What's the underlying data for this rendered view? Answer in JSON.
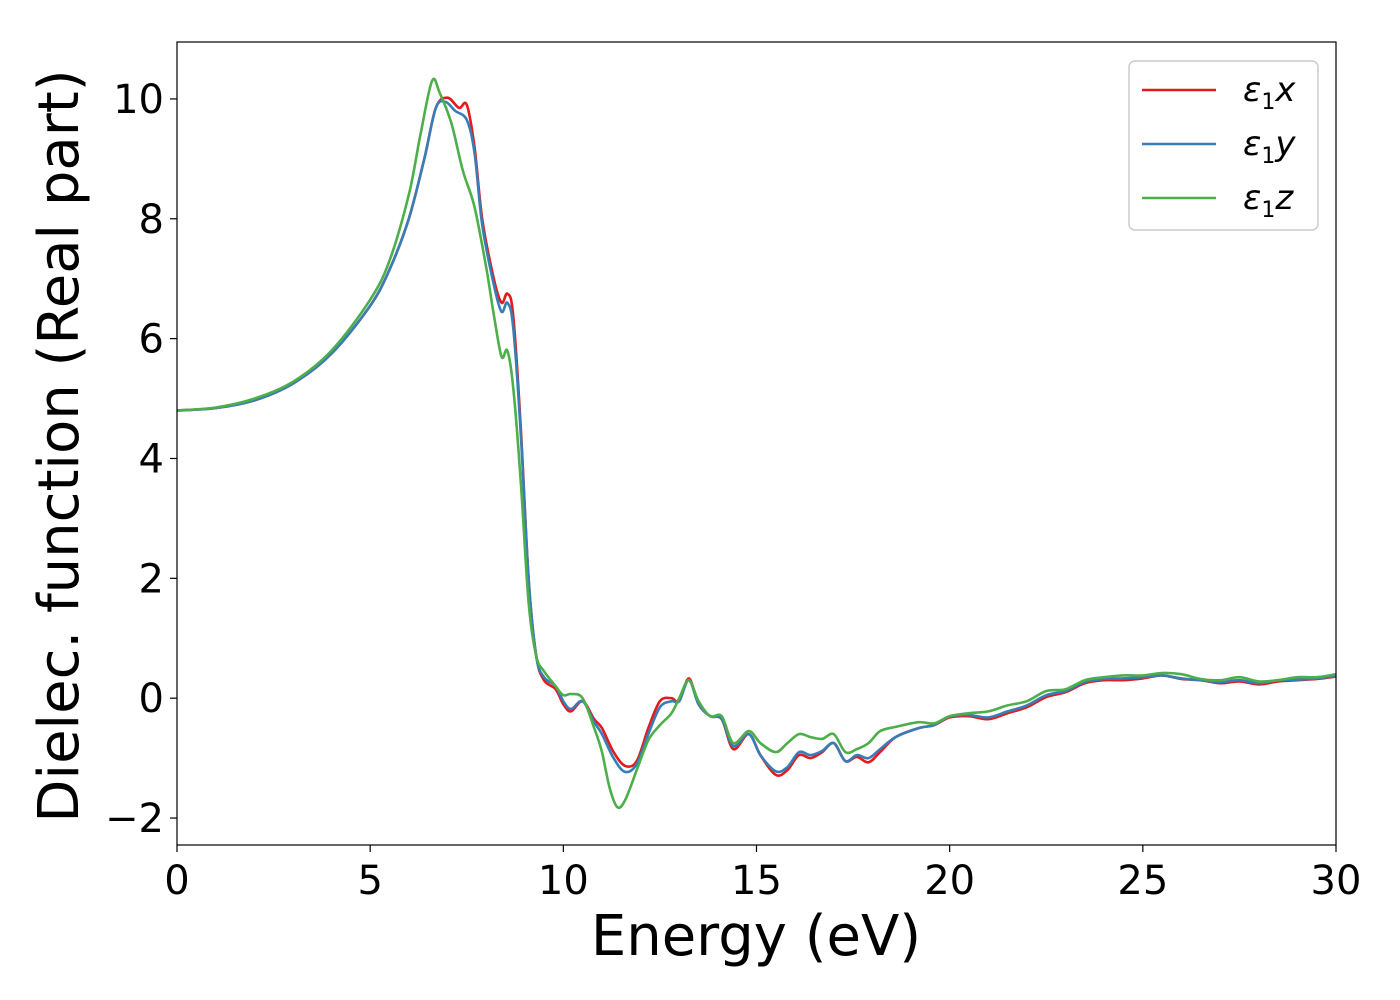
{
  "chart_data": {
    "type": "line",
    "xlabel": "Energy (eV)",
    "ylabel": "Dielec. function (Real part)",
    "xlim": [
      0,
      30
    ],
    "ylim": [
      -2.45,
      10.95
    ],
    "xticks": [
      0,
      5,
      10,
      15,
      20,
      25,
      30
    ],
    "xtick_labels": [
      "0",
      "5",
      "10",
      "15",
      "20",
      "25",
      "30"
    ],
    "yticks": [
      -2,
      0,
      2,
      4,
      6,
      8,
      10
    ],
    "ytick_labels": [
      "−2",
      "0",
      "2",
      "4",
      "6",
      "8",
      "10"
    ],
    "grid": false,
    "legend_position": "top-right",
    "colors": {
      "x": "#e41a1c",
      "y": "#377eb8",
      "z": "#4daf4a"
    },
    "series": [
      {
        "name": "ε₁x",
        "legend": {
          "base": "ε",
          "sub": "1",
          "suffix": "x"
        },
        "color": "#e41a1c",
        "points": [
          [
            0,
            4.8
          ],
          [
            1,
            4.84
          ],
          [
            2,
            4.97
          ],
          [
            3,
            5.25
          ],
          [
            4,
            5.75
          ],
          [
            5,
            6.55
          ],
          [
            5.5,
            7.15
          ],
          [
            6,
            8.0
          ],
          [
            6.4,
            9.0
          ],
          [
            6.7,
            9.85
          ],
          [
            7.0,
            10.02
          ],
          [
            7.3,
            9.85
          ],
          [
            7.5,
            9.9
          ],
          [
            7.7,
            9.2
          ],
          [
            7.9,
            8.0
          ],
          [
            8.2,
            7.0
          ],
          [
            8.4,
            6.6
          ],
          [
            8.55,
            6.75
          ],
          [
            8.7,
            6.4
          ],
          [
            8.9,
            4.5
          ],
          [
            9.1,
            2.0
          ],
          [
            9.3,
            0.7
          ],
          [
            9.5,
            0.3
          ],
          [
            9.8,
            0.15
          ],
          [
            10.0,
            -0.1
          ],
          [
            10.2,
            -0.22
          ],
          [
            10.5,
            -0.05
          ],
          [
            10.8,
            -0.35
          ],
          [
            11.0,
            -0.5
          ],
          [
            11.3,
            -0.9
          ],
          [
            11.6,
            -1.13
          ],
          [
            11.9,
            -1.05
          ],
          [
            12.2,
            -0.5
          ],
          [
            12.5,
            -0.05
          ],
          [
            12.8,
            0.0
          ],
          [
            13.0,
            -0.05
          ],
          [
            13.25,
            0.33
          ],
          [
            13.5,
            -0.1
          ],
          [
            13.8,
            -0.3
          ],
          [
            14.1,
            -0.35
          ],
          [
            14.4,
            -0.85
          ],
          [
            14.8,
            -0.6
          ],
          [
            15.1,
            -0.95
          ],
          [
            15.5,
            -1.28
          ],
          [
            15.8,
            -1.2
          ],
          [
            16.1,
            -0.95
          ],
          [
            16.4,
            -1.0
          ],
          [
            16.7,
            -0.9
          ],
          [
            17.0,
            -0.75
          ],
          [
            17.3,
            -1.05
          ],
          [
            17.6,
            -0.98
          ],
          [
            17.9,
            -1.07
          ],
          [
            18.2,
            -0.9
          ],
          [
            18.6,
            -0.65
          ],
          [
            19.2,
            -0.5
          ],
          [
            19.6,
            -0.45
          ],
          [
            20.0,
            -0.32
          ],
          [
            20.5,
            -0.3
          ],
          [
            21.0,
            -0.35
          ],
          [
            21.5,
            -0.25
          ],
          [
            22.0,
            -0.15
          ],
          [
            22.5,
            0.02
          ],
          [
            23.0,
            0.1
          ],
          [
            23.5,
            0.25
          ],
          [
            24.0,
            0.3
          ],
          [
            24.5,
            0.3
          ],
          [
            25.0,
            0.33
          ],
          [
            25.5,
            0.38
          ],
          [
            26.0,
            0.32
          ],
          [
            26.5,
            0.3
          ],
          [
            27.0,
            0.25
          ],
          [
            27.5,
            0.28
          ],
          [
            28.0,
            0.23
          ],
          [
            28.5,
            0.28
          ],
          [
            29.0,
            0.3
          ],
          [
            29.5,
            0.32
          ],
          [
            30.0,
            0.36
          ]
        ]
      },
      {
        "name": "ε₁y",
        "legend": {
          "base": "ε",
          "sub": "1",
          "suffix": "y"
        },
        "color": "#377eb8",
        "points": [
          [
            0,
            4.8
          ],
          [
            1,
            4.84
          ],
          [
            2,
            4.97
          ],
          [
            3,
            5.25
          ],
          [
            4,
            5.75
          ],
          [
            5,
            6.55
          ],
          [
            5.5,
            7.15
          ],
          [
            6,
            8.0
          ],
          [
            6.4,
            9.0
          ],
          [
            6.7,
            9.85
          ],
          [
            6.95,
            9.95
          ],
          [
            7.2,
            9.8
          ],
          [
            7.5,
            9.65
          ],
          [
            7.7,
            9.1
          ],
          [
            7.9,
            7.9
          ],
          [
            8.2,
            6.9
          ],
          [
            8.4,
            6.45
          ],
          [
            8.55,
            6.6
          ],
          [
            8.7,
            6.2
          ],
          [
            8.9,
            4.4
          ],
          [
            9.1,
            2.0
          ],
          [
            9.3,
            0.7
          ],
          [
            9.5,
            0.35
          ],
          [
            9.8,
            0.2
          ],
          [
            10.0,
            -0.05
          ],
          [
            10.2,
            -0.18
          ],
          [
            10.5,
            -0.05
          ],
          [
            10.8,
            -0.4
          ],
          [
            11.0,
            -0.6
          ],
          [
            11.3,
            -1.0
          ],
          [
            11.6,
            -1.23
          ],
          [
            11.9,
            -1.1
          ],
          [
            12.2,
            -0.6
          ],
          [
            12.5,
            -0.15
          ],
          [
            12.8,
            -0.05
          ],
          [
            13.0,
            -0.05
          ],
          [
            13.25,
            0.3
          ],
          [
            13.5,
            -0.1
          ],
          [
            13.8,
            -0.3
          ],
          [
            14.1,
            -0.35
          ],
          [
            14.4,
            -0.8
          ],
          [
            14.8,
            -0.6
          ],
          [
            15.1,
            -0.95
          ],
          [
            15.5,
            -1.22
          ],
          [
            15.8,
            -1.15
          ],
          [
            16.1,
            -0.9
          ],
          [
            16.4,
            -0.95
          ],
          [
            16.7,
            -0.88
          ],
          [
            17.0,
            -0.75
          ],
          [
            17.3,
            -1.05
          ],
          [
            17.6,
            -0.95
          ],
          [
            17.9,
            -1.0
          ],
          [
            18.2,
            -0.85
          ],
          [
            18.6,
            -0.65
          ],
          [
            19.2,
            -0.5
          ],
          [
            19.6,
            -0.45
          ],
          [
            20.0,
            -0.3
          ],
          [
            20.5,
            -0.28
          ],
          [
            21.0,
            -0.32
          ],
          [
            21.5,
            -0.22
          ],
          [
            22.0,
            -0.12
          ],
          [
            22.5,
            0.05
          ],
          [
            23.0,
            0.12
          ],
          [
            23.5,
            0.27
          ],
          [
            24.0,
            0.32
          ],
          [
            24.5,
            0.33
          ],
          [
            25.0,
            0.35
          ],
          [
            25.5,
            0.38
          ],
          [
            26.0,
            0.33
          ],
          [
            26.5,
            0.3
          ],
          [
            27.0,
            0.27
          ],
          [
            27.5,
            0.3
          ],
          [
            28.0,
            0.25
          ],
          [
            28.5,
            0.3
          ],
          [
            29.0,
            0.31
          ],
          [
            29.5,
            0.33
          ],
          [
            30.0,
            0.37
          ]
        ]
      },
      {
        "name": "ε₁z",
        "legend": {
          "base": "ε",
          "sub": "1",
          "suffix": "z"
        },
        "color": "#4daf4a",
        "points": [
          [
            0,
            4.8
          ],
          [
            1,
            4.85
          ],
          [
            2,
            5.0
          ],
          [
            3,
            5.28
          ],
          [
            4,
            5.8
          ],
          [
            5,
            6.65
          ],
          [
            5.5,
            7.3
          ],
          [
            6,
            8.4
          ],
          [
            6.3,
            9.4
          ],
          [
            6.6,
            10.3
          ],
          [
            6.8,
            10.1
          ],
          [
            7.1,
            9.6
          ],
          [
            7.4,
            8.8
          ],
          [
            7.7,
            8.2
          ],
          [
            8.0,
            7.2
          ],
          [
            8.2,
            6.4
          ],
          [
            8.4,
            5.7
          ],
          [
            8.55,
            5.8
          ],
          [
            8.7,
            5.2
          ],
          [
            8.9,
            3.6
          ],
          [
            9.1,
            1.6
          ],
          [
            9.3,
            0.7
          ],
          [
            9.5,
            0.45
          ],
          [
            9.8,
            0.2
          ],
          [
            10.0,
            0.05
          ],
          [
            10.2,
            0.07
          ],
          [
            10.5,
            0.0
          ],
          [
            10.8,
            -0.5
          ],
          [
            11.0,
            -0.9
          ],
          [
            11.2,
            -1.5
          ],
          [
            11.4,
            -1.82
          ],
          [
            11.6,
            -1.7
          ],
          [
            11.9,
            -1.2
          ],
          [
            12.2,
            -0.7
          ],
          [
            12.5,
            -0.45
          ],
          [
            12.8,
            -0.25
          ],
          [
            13.0,
            0.0
          ],
          [
            13.25,
            0.3
          ],
          [
            13.5,
            -0.05
          ],
          [
            13.8,
            -0.3
          ],
          [
            14.1,
            -0.3
          ],
          [
            14.4,
            -0.75
          ],
          [
            14.8,
            -0.55
          ],
          [
            15.1,
            -0.75
          ],
          [
            15.5,
            -0.9
          ],
          [
            15.8,
            -0.75
          ],
          [
            16.1,
            -0.6
          ],
          [
            16.4,
            -0.65
          ],
          [
            16.7,
            -0.68
          ],
          [
            17.0,
            -0.6
          ],
          [
            17.3,
            -0.9
          ],
          [
            17.6,
            -0.85
          ],
          [
            17.9,
            -0.75
          ],
          [
            18.2,
            -0.55
          ],
          [
            18.6,
            -0.48
          ],
          [
            19.2,
            -0.4
          ],
          [
            19.6,
            -0.42
          ],
          [
            20.0,
            -0.3
          ],
          [
            20.5,
            -0.25
          ],
          [
            21.0,
            -0.22
          ],
          [
            21.5,
            -0.12
          ],
          [
            22.0,
            -0.05
          ],
          [
            22.5,
            0.12
          ],
          [
            23.0,
            0.15
          ],
          [
            23.5,
            0.3
          ],
          [
            24.0,
            0.35
          ],
          [
            24.5,
            0.38
          ],
          [
            25.0,
            0.38
          ],
          [
            25.5,
            0.42
          ],
          [
            26.0,
            0.4
          ],
          [
            26.5,
            0.32
          ],
          [
            27.0,
            0.3
          ],
          [
            27.5,
            0.35
          ],
          [
            28.0,
            0.28
          ],
          [
            28.5,
            0.3
          ],
          [
            29.0,
            0.35
          ],
          [
            29.5,
            0.35
          ],
          [
            30.0,
            0.4
          ]
        ]
      }
    ]
  }
}
